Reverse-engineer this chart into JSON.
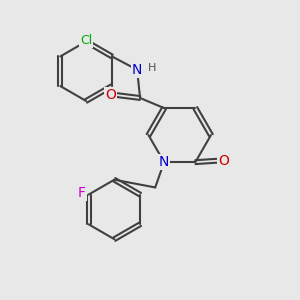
{
  "background_color": "#e8e8e8",
  "bond_color": "#404040",
  "atom_colors": {
    "N": "#0000cc",
    "O": "#cc0000",
    "Cl": "#00aa00",
    "F": "#cc00cc",
    "H": "#505050",
    "C": "#404040"
  },
  "bond_width": 1.5,
  "font_size": 9
}
